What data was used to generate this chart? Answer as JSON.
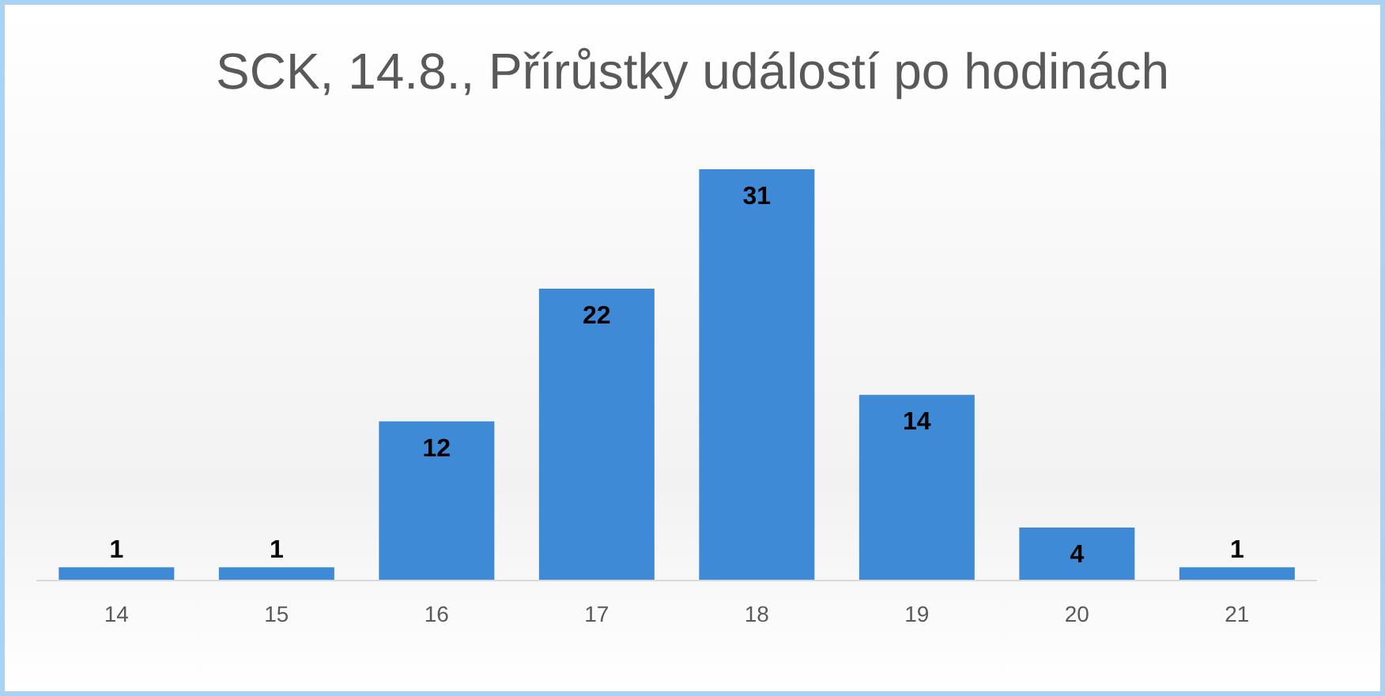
{
  "chart_data": {
    "type": "bar",
    "title": "SCK, 14.8., Přírůstky událostí po hodinách",
    "categories": [
      "14",
      "15",
      "16",
      "17",
      "18",
      "19",
      "20",
      "21"
    ],
    "values": [
      1,
      1,
      12,
      22,
      31,
      14,
      4,
      1
    ],
    "color": "#3f8ad6",
    "data_labels": true,
    "grid": false,
    "legend": false
  }
}
